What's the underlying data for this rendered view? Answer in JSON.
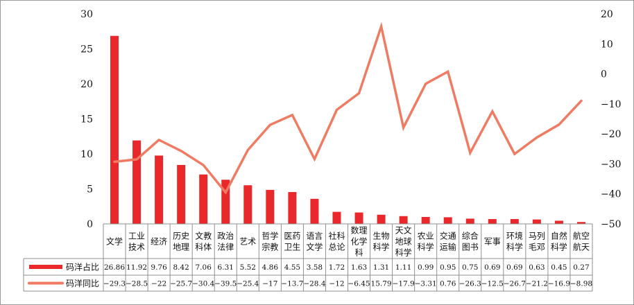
{
  "chart_data": {
    "type": "bar+line",
    "categories": [
      [
        "文学"
      ],
      [
        "工业",
        "技术"
      ],
      [
        "经济"
      ],
      [
        "历史",
        "地理"
      ],
      [
        "文教",
        "科体"
      ],
      [
        "政治",
        "法律"
      ],
      [
        "艺术"
      ],
      [
        "哲学",
        "宗教"
      ],
      [
        "医药",
        "卫生"
      ],
      [
        "语言",
        "文学"
      ],
      [
        "社科",
        "总论"
      ],
      [
        "数理",
        "化学",
        "科"
      ],
      [
        "生物",
        "科学"
      ],
      [
        "天文",
        "地球",
        "科学"
      ],
      [
        "农业",
        "科学"
      ],
      [
        "交通",
        "运输"
      ],
      [
        "综合",
        "图书"
      ],
      [
        "军事"
      ],
      [
        "环境",
        "科学"
      ],
      [
        "马列",
        "毛邓"
      ],
      [
        "自然",
        "科学"
      ],
      [
        "航空",
        "航天"
      ]
    ],
    "series": [
      {
        "name": "码洋占比",
        "type": "bar",
        "axis": "left",
        "color": "#e8282a",
        "values": [
          26.86,
          11.92,
          9.76,
          8.42,
          7.06,
          6.31,
          5.52,
          4.86,
          4.55,
          3.58,
          1.72,
          1.63,
          1.31,
          1.11,
          0.99,
          0.95,
          0.75,
          0.69,
          0.69,
          0.63,
          0.45,
          0.27
        ],
        "labels": [
          "26.86",
          "11.92",
          "9.76",
          "8.42",
          "7.06",
          "6.31",
          "5.52",
          "4.86",
          "4.55",
          "3.58",
          "1.72",
          "1.63",
          "1.31",
          "1.11",
          "0.99",
          "0.95",
          "0.75",
          "0.69",
          "0.69",
          "0.63",
          "0.45",
          "0.27"
        ]
      },
      {
        "name": "码洋同比",
        "type": "line",
        "axis": "right",
        "color": "#ef7b62",
        "values": [
          -29.3,
          -28.5,
          -22,
          -25.7,
          -30.4,
          -39.5,
          -25.4,
          -17,
          -13.7,
          -28.4,
          -12,
          -6.45,
          15.79,
          -17.9,
          -3.31,
          0.76,
          -26.3,
          -12.5,
          -26.7,
          -21.2,
          -16.9,
          -8.98
        ],
        "labels": [
          "−29.3",
          "−28.5",
          "−22",
          "−25.7",
          "−30.4",
          "−39.5",
          "−25.4",
          "−17",
          "−13.7",
          "−28.4",
          "−12",
          "−6.45",
          "15.79",
          "−17.9",
          "−3.31",
          "0.76",
          "−26.3",
          "−12.5",
          "−26.7",
          "−21.2",
          "−16.9",
          "−8.98"
        ]
      }
    ],
    "y_left": {
      "min": 0,
      "max": 30,
      "ticks": [
        "0",
        "5",
        "10",
        "15",
        "20",
        "25",
        "30"
      ]
    },
    "y_right": {
      "min": -50,
      "max": 20,
      "ticks": [
        "−50",
        "−40",
        "−30",
        "−20",
        "−10",
        "0",
        "10",
        "20"
      ]
    },
    "grid": false,
    "legend": "bottom-left data table"
  }
}
